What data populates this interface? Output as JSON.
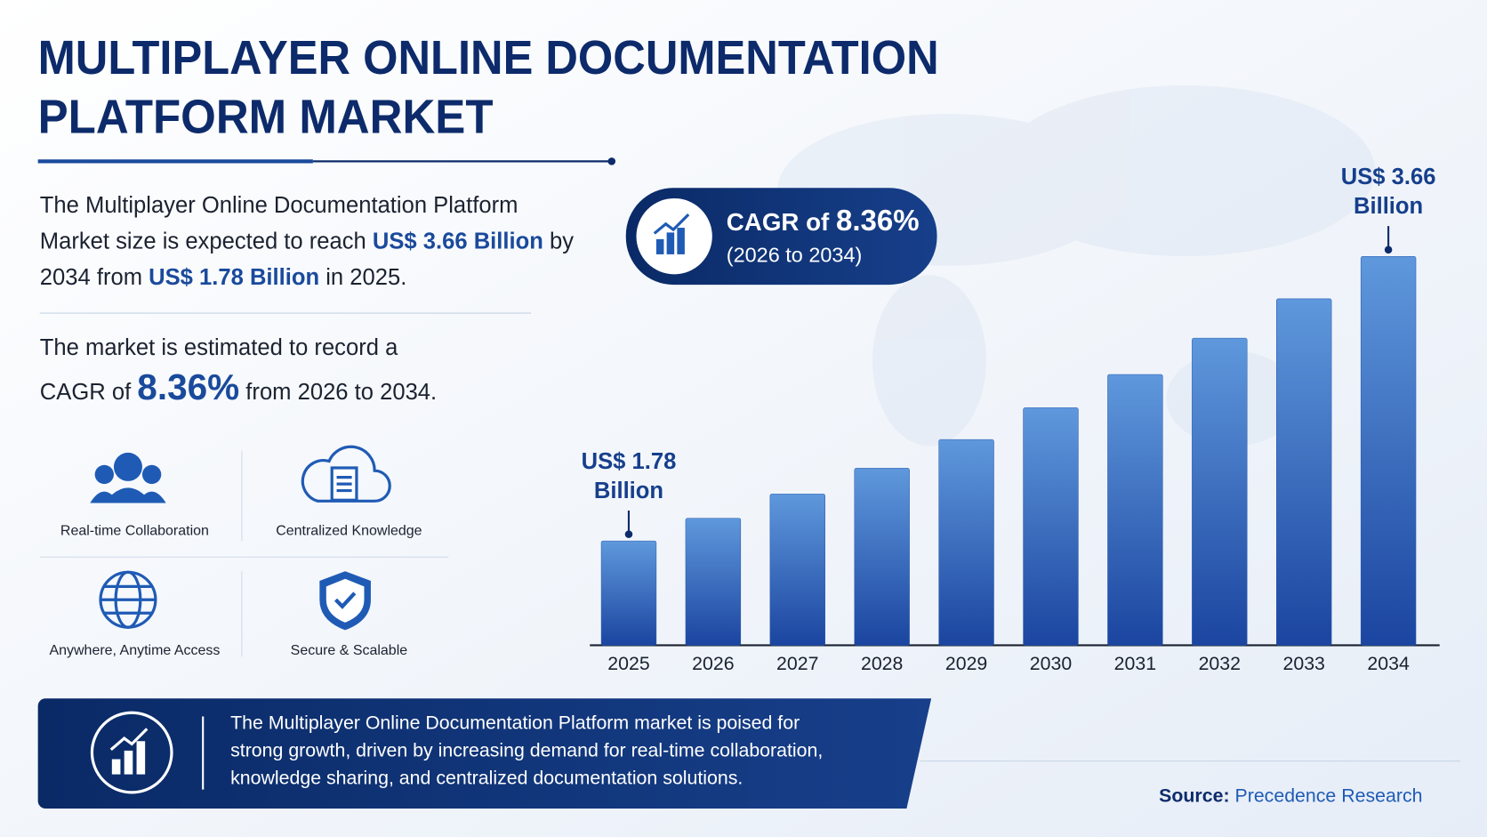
{
  "header": {
    "title_line1": "MULTIPLAYER ONLINE DOCUMENTATION",
    "title_line2": "PLATFORM MARKET"
  },
  "intro": {
    "parts": [
      "The Multiplayer Online Documentation Platform Market size is expected to reach ",
      "US$ 3.66 Billion",
      " by 2034 from ",
      "US$ 1.78 Billion",
      " in 2025."
    ]
  },
  "cagr_text": {
    "parts": [
      "The market is estimated to record a",
      "CAGR of",
      "8.36%",
      "from 2026 to 2034."
    ]
  },
  "features": [
    "Real-time Collaboration",
    "Centralized Knowledge",
    "Anywhere, Anytime Access",
    "Secure & Scalable"
  ],
  "badge": {
    "label": "CAGR of",
    "value": "8.36%",
    "period": "(2026 to 2034)"
  },
  "banner": "The Multiplayer Online Documentation Platform market is poised for strong growth, driven by increasing demand for real-time collaboration, knowledge sharing, and centralized documentation solutions.",
  "source": {
    "label": "Source:",
    "name": "Precedence Research"
  },
  "chart_data": {
    "type": "bar",
    "categories": [
      "2025",
      "2026",
      "2027",
      "2028",
      "2029",
      "2030",
      "2031",
      "2032",
      "2033",
      "2034"
    ],
    "values": [
      1.78,
      1.93,
      2.09,
      2.26,
      2.45,
      2.66,
      2.88,
      3.12,
      3.38,
      3.66
    ],
    "value_labels": [
      "US$ 1.78 Billion",
      null,
      null,
      null,
      null,
      null,
      null,
      null,
      null,
      "US$ 3.66 Billion"
    ],
    "ylim": [
      1.09,
      4.0
    ],
    "color": "#2a5cb0"
  }
}
